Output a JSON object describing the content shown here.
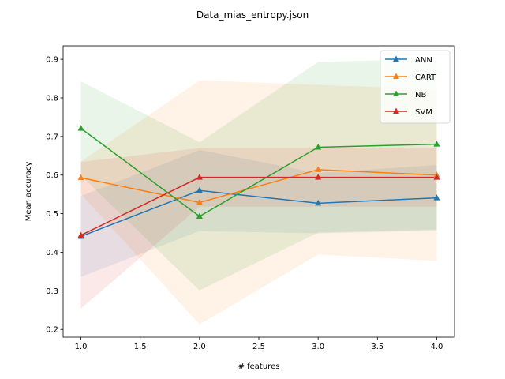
{
  "chart_data": {
    "type": "line",
    "title": "Data_mias_entropy.json",
    "xlabel": "# features",
    "ylabel": "Mean accuracy",
    "xlim": [
      0.85,
      4.15
    ],
    "ylim": [
      0.18,
      0.935
    ],
    "xticks": [
      1.0,
      1.5,
      2.0,
      2.5,
      3.0,
      3.5,
      4.0
    ],
    "xtick_labels": [
      "1.0",
      "1.5",
      "2.0",
      "2.5",
      "3.0",
      "3.5",
      "4.0"
    ],
    "yticks": [
      0.2,
      0.3,
      0.4,
      0.5,
      0.6,
      0.7,
      0.8,
      0.9
    ],
    "ytick_labels": [
      "0.2",
      "0.3",
      "0.4",
      "0.5",
      "0.6",
      "0.7",
      "0.8",
      "0.9"
    ],
    "grid": false,
    "legend_position": "top-right",
    "x": [
      1,
      2,
      3,
      4
    ],
    "series": [
      {
        "name": "ANN",
        "color": "#1f77b4",
        "values": [
          0.441,
          0.56,
          0.527,
          0.541
        ],
        "lower": [
          0.336,
          0.455,
          0.449,
          0.456
        ],
        "upper": [
          0.546,
          0.665,
          0.605,
          0.626
        ]
      },
      {
        "name": "CART",
        "color": "#ff7f0e",
        "values": [
          0.593,
          0.529,
          0.614,
          0.6
        ],
        "lower": [
          0.551,
          0.213,
          0.394,
          0.378
        ],
        "upper": [
          0.635,
          0.845,
          0.834,
          0.822
        ]
      },
      {
        "name": "NB",
        "color": "#2ca02c",
        "values": [
          0.721,
          0.493,
          0.672,
          0.68
        ],
        "lower": [
          0.599,
          0.301,
          0.451,
          0.459
        ],
        "upper": [
          0.843,
          0.685,
          0.893,
          0.901
        ]
      },
      {
        "name": "SVM",
        "color": "#d62728",
        "values": [
          0.444,
          0.594,
          0.594,
          0.594
        ],
        "lower": [
          0.254,
          0.518,
          0.518,
          0.518
        ],
        "upper": [
          0.634,
          0.67,
          0.67,
          0.67
        ]
      }
    ]
  }
}
